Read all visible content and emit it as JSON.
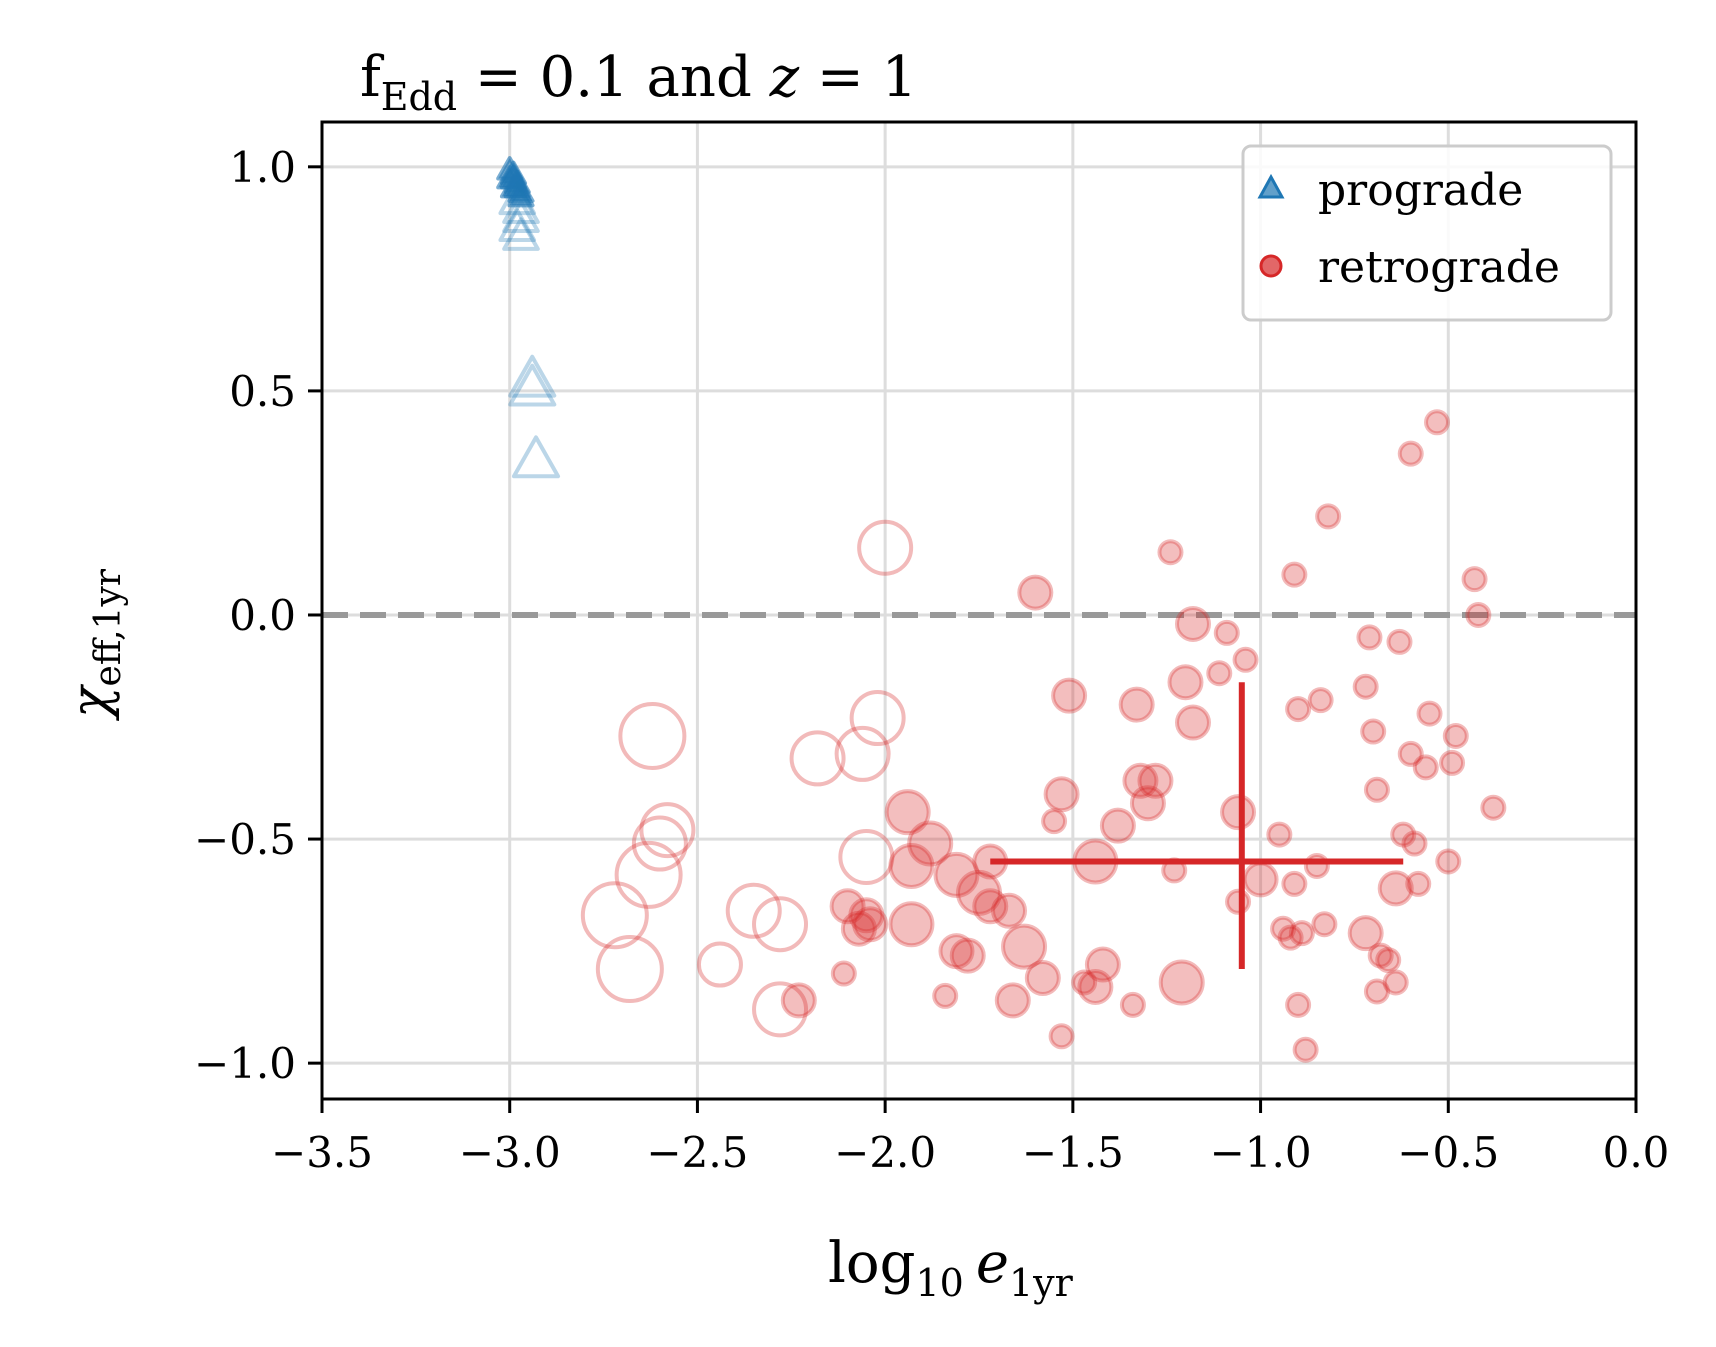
{
  "chart_data": {
    "type": "scatter",
    "title": {
      "prefix": "f",
      "sub": "Edd",
      "suffix": " = 0.1 and ",
      "var": "z",
      "tail": " = 1"
    },
    "xlabel": {
      "main": "log",
      "sub": "10",
      "var": "e",
      "var_sub": "1yr"
    },
    "ylabel": {
      "main": "χ",
      "sub": "eff,1yr"
    },
    "xlim": [
      -3.5,
      0.0
    ],
    "ylim": [
      -1.08,
      1.1
    ],
    "xticks": [
      -3.5,
      -3.0,
      -2.5,
      -2.0,
      -1.5,
      -1.0,
      -0.5,
      0.0
    ],
    "xtick_labels": [
      "−3.5",
      "−3.0",
      "−2.5",
      "−2.0",
      "−1.5",
      "−1.0",
      "−0.5",
      "0.0"
    ],
    "yticks": [
      1.0,
      0.5,
      0.0,
      -0.5,
      -1.0
    ],
    "ytick_labels": [
      "1.0",
      "0.5",
      "0.0",
      "−0.5",
      "−1.0"
    ],
    "grid": true,
    "legend_position": "top-right",
    "reference_line": {
      "y": 0.0,
      "style": "dashed",
      "color": "#999999"
    },
    "colors": {
      "prograde": "#1f77b4",
      "retrograde": "#d62728"
    },
    "series": [
      {
        "name": "prograde",
        "marker": "triangle",
        "points": [
          {
            "x": -3.0,
            "y": 0.99,
            "s": "small",
            "filled": true
          },
          {
            "x": -2.99,
            "y": 0.98,
            "s": "small",
            "filled": true
          },
          {
            "x": -2.99,
            "y": 0.97,
            "s": "small",
            "filled": true
          },
          {
            "x": -2.98,
            "y": 0.96,
            "s": "small",
            "filled": true
          },
          {
            "x": -2.98,
            "y": 0.95,
            "s": "small",
            "filled": true
          },
          {
            "x": -2.97,
            "y": 0.94,
            "s": "small",
            "filled": true
          },
          {
            "x": -2.97,
            "y": 0.93,
            "s": "small",
            "filled": true
          },
          {
            "x": -3.0,
            "y": 0.97,
            "s": "small",
            "filled": true
          },
          {
            "x": -2.99,
            "y": 0.95,
            "s": "small",
            "filled": true
          },
          {
            "x": -2.98,
            "y": 0.92,
            "s": "medium",
            "filled": false
          },
          {
            "x": -2.97,
            "y": 0.9,
            "s": "medium",
            "filled": false
          },
          {
            "x": -2.97,
            "y": 0.88,
            "s": "medium",
            "filled": false
          },
          {
            "x": -2.98,
            "y": 0.86,
            "s": "medium",
            "filled": false
          },
          {
            "x": -2.97,
            "y": 0.84,
            "s": "medium",
            "filled": false
          },
          {
            "x": -2.94,
            "y": 0.52,
            "s": "large",
            "filled": false
          },
          {
            "x": -2.94,
            "y": 0.5,
            "s": "large",
            "filled": false
          },
          {
            "x": -2.93,
            "y": 0.34,
            "s": "large",
            "filled": false
          }
        ]
      },
      {
        "name": "retrograde",
        "marker": "circle",
        "points": [
          {
            "x": -0.53,
            "y": 0.43,
            "s": "small",
            "filled": true
          },
          {
            "x": -0.6,
            "y": 0.36,
            "s": "small",
            "filled": true
          },
          {
            "x": -0.82,
            "y": 0.22,
            "s": "small",
            "filled": true
          },
          {
            "x": -1.24,
            "y": 0.14,
            "s": "small",
            "filled": true
          },
          {
            "x": -0.91,
            "y": 0.09,
            "s": "small",
            "filled": true
          },
          {
            "x": -0.43,
            "y": 0.08,
            "s": "small",
            "filled": true
          },
          {
            "x": -1.6,
            "y": 0.05,
            "s": "medium",
            "filled": true
          },
          {
            "x": -0.42,
            "y": 0.0,
            "s": "small",
            "filled": true
          },
          {
            "x": -1.18,
            "y": -0.02,
            "s": "medium",
            "filled": true
          },
          {
            "x": -1.09,
            "y": -0.04,
            "s": "small",
            "filled": true
          },
          {
            "x": -0.63,
            "y": -0.06,
            "s": "small",
            "filled": true
          },
          {
            "x": -0.71,
            "y": -0.05,
            "s": "small",
            "filled": true
          },
          {
            "x": -1.04,
            "y": -0.1,
            "s": "small",
            "filled": true
          },
          {
            "x": -1.11,
            "y": -0.13,
            "s": "small",
            "filled": true
          },
          {
            "x": -1.2,
            "y": -0.15,
            "s": "medium",
            "filled": true
          },
          {
            "x": -0.72,
            "y": -0.16,
            "s": "small",
            "filled": true
          },
          {
            "x": -1.51,
            "y": -0.18,
            "s": "medium",
            "filled": true
          },
          {
            "x": -0.84,
            "y": -0.19,
            "s": "small",
            "filled": true
          },
          {
            "x": -1.33,
            "y": -0.2,
            "s": "medium",
            "filled": true
          },
          {
            "x": -0.9,
            "y": -0.21,
            "s": "small",
            "filled": true
          },
          {
            "x": -0.55,
            "y": -0.22,
            "s": "small",
            "filled": true
          },
          {
            "x": -1.18,
            "y": -0.24,
            "s": "medium",
            "filled": true
          },
          {
            "x": -0.7,
            "y": -0.26,
            "s": "small",
            "filled": true
          },
          {
            "x": -0.48,
            "y": -0.27,
            "s": "small",
            "filled": true
          },
          {
            "x": -0.6,
            "y": -0.31,
            "s": "small",
            "filled": true
          },
          {
            "x": -0.56,
            "y": -0.34,
            "s": "small",
            "filled": true
          },
          {
            "x": -0.49,
            "y": -0.33,
            "s": "small",
            "filled": true
          },
          {
            "x": -1.32,
            "y": -0.37,
            "s": "medium",
            "filled": true
          },
          {
            "x": -1.28,
            "y": -0.37,
            "s": "medium",
            "filled": true
          },
          {
            "x": -1.53,
            "y": -0.4,
            "s": "medium",
            "filled": true
          },
          {
            "x": -0.69,
            "y": -0.39,
            "s": "small",
            "filled": true
          },
          {
            "x": -1.3,
            "y": -0.42,
            "s": "medium",
            "filled": true
          },
          {
            "x": -0.38,
            "y": -0.43,
            "s": "small",
            "filled": true
          },
          {
            "x": -1.06,
            "y": -0.44,
            "s": "medium",
            "filled": true
          },
          {
            "x": -1.94,
            "y": -0.44,
            "s": "large",
            "filled": true
          },
          {
            "x": -1.55,
            "y": -0.46,
            "s": "small",
            "filled": true
          },
          {
            "x": -1.38,
            "y": -0.47,
            "s": "medium",
            "filled": true
          },
          {
            "x": -0.95,
            "y": -0.49,
            "s": "small",
            "filled": true
          },
          {
            "x": -0.62,
            "y": -0.49,
            "s": "small",
            "filled": true
          },
          {
            "x": -0.59,
            "y": -0.51,
            "s": "small",
            "filled": true
          },
          {
            "x": -1.88,
            "y": -0.51,
            "s": "large",
            "filled": true
          },
          {
            "x": -1.72,
            "y": -0.55,
            "s": "medium",
            "filled": true
          },
          {
            "x": -1.44,
            "y": -0.55,
            "s": "large",
            "filled": true
          },
          {
            "x": -0.5,
            "y": -0.55,
            "s": "small",
            "filled": true
          },
          {
            "x": -1.93,
            "y": -0.56,
            "s": "large",
            "filled": true
          },
          {
            "x": -0.85,
            "y": -0.56,
            "s": "small",
            "filled": true
          },
          {
            "x": -1.23,
            "y": -0.57,
            "s": "small",
            "filled": true
          },
          {
            "x": -1.81,
            "y": -0.58,
            "s": "large",
            "filled": true
          },
          {
            "x": -1.0,
            "y": -0.59,
            "s": "medium",
            "filled": true
          },
          {
            "x": -0.91,
            "y": -0.6,
            "s": "small",
            "filled": true
          },
          {
            "x": -0.58,
            "y": -0.6,
            "s": "small",
            "filled": true
          },
          {
            "x": -0.64,
            "y": -0.61,
            "s": "medium",
            "filled": true
          },
          {
            "x": -1.75,
            "y": -0.62,
            "s": "large",
            "filled": true
          },
          {
            "x": -1.72,
            "y": -0.65,
            "s": "medium",
            "filled": true
          },
          {
            "x": -2.1,
            "y": -0.65,
            "s": "medium",
            "filled": true
          },
          {
            "x": -1.06,
            "y": -0.64,
            "s": "small",
            "filled": true
          },
          {
            "x": -1.67,
            "y": -0.66,
            "s": "medium",
            "filled": true
          },
          {
            "x": -2.05,
            "y": -0.67,
            "s": "medium",
            "filled": true
          },
          {
            "x": -2.04,
            "y": -0.69,
            "s": "medium",
            "filled": true
          },
          {
            "x": -1.93,
            "y": -0.69,
            "s": "large",
            "filled": true
          },
          {
            "x": -2.07,
            "y": -0.7,
            "s": "medium",
            "filled": true
          },
          {
            "x": -0.83,
            "y": -0.69,
            "s": "small",
            "filled": true
          },
          {
            "x": -0.94,
            "y": -0.7,
            "s": "small",
            "filled": true
          },
          {
            "x": -0.92,
            "y": -0.72,
            "s": "small",
            "filled": true
          },
          {
            "x": -0.89,
            "y": -0.71,
            "s": "small",
            "filled": true
          },
          {
            "x": -0.72,
            "y": -0.71,
            "s": "medium",
            "filled": true
          },
          {
            "x": -1.63,
            "y": -0.74,
            "s": "large",
            "filled": true
          },
          {
            "x": -1.81,
            "y": -0.75,
            "s": "medium",
            "filled": true
          },
          {
            "x": -1.78,
            "y": -0.76,
            "s": "medium",
            "filled": true
          },
          {
            "x": -0.68,
            "y": -0.76,
            "s": "small",
            "filled": true
          },
          {
            "x": -0.66,
            "y": -0.77,
            "s": "small",
            "filled": true
          },
          {
            "x": -1.42,
            "y": -0.78,
            "s": "medium",
            "filled": true
          },
          {
            "x": -2.11,
            "y": -0.8,
            "s": "small",
            "filled": true
          },
          {
            "x": -1.58,
            "y": -0.81,
            "s": "medium",
            "filled": true
          },
          {
            "x": -1.47,
            "y": -0.82,
            "s": "small",
            "filled": true
          },
          {
            "x": -1.44,
            "y": -0.83,
            "s": "medium",
            "filled": true
          },
          {
            "x": -1.21,
            "y": -0.82,
            "s": "large",
            "filled": true
          },
          {
            "x": -0.64,
            "y": -0.82,
            "s": "small",
            "filled": true
          },
          {
            "x": -0.69,
            "y": -0.84,
            "s": "small",
            "filled": true
          },
          {
            "x": -1.84,
            "y": -0.85,
            "s": "small",
            "filled": true
          },
          {
            "x": -1.66,
            "y": -0.86,
            "s": "medium",
            "filled": true
          },
          {
            "x": -2.23,
            "y": -0.86,
            "s": "medium",
            "filled": true
          },
          {
            "x": -1.34,
            "y": -0.87,
            "s": "small",
            "filled": true
          },
          {
            "x": -0.9,
            "y": -0.87,
            "s": "small",
            "filled": true
          },
          {
            "x": -1.53,
            "y": -0.94,
            "s": "small",
            "filled": true
          },
          {
            "x": -0.88,
            "y": -0.97,
            "s": "small",
            "filled": true
          },
          {
            "x": -2.0,
            "y": 0.15,
            "s": "xlarge",
            "filled": false
          },
          {
            "x": -2.02,
            "y": -0.23,
            "s": "xlarge",
            "filled": false
          },
          {
            "x": -2.62,
            "y": -0.27,
            "s": "xxlarge",
            "filled": false
          },
          {
            "x": -2.18,
            "y": -0.32,
            "s": "xlarge",
            "filled": false
          },
          {
            "x": -2.06,
            "y": -0.31,
            "s": "xlarge",
            "filled": false
          },
          {
            "x": -2.58,
            "y": -0.48,
            "s": "xlarge",
            "filled": false
          },
          {
            "x": -2.6,
            "y": -0.51,
            "s": "xlarge",
            "filled": false
          },
          {
            "x": -2.05,
            "y": -0.54,
            "s": "xlarge",
            "filled": false
          },
          {
            "x": -2.63,
            "y": -0.58,
            "s": "xxlarge",
            "filled": false
          },
          {
            "x": -2.35,
            "y": -0.66,
            "s": "xlarge",
            "filled": false
          },
          {
            "x": -2.72,
            "y": -0.67,
            "s": "xxlarge",
            "filled": false
          },
          {
            "x": -2.28,
            "y": -0.69,
            "s": "xlarge",
            "filled": false
          },
          {
            "x": -2.44,
            "y": -0.78,
            "s": "large",
            "filled": false
          },
          {
            "x": -2.68,
            "y": -0.79,
            "s": "xxlarge",
            "filled": false
          },
          {
            "x": -2.28,
            "y": -0.88,
            "s": "xlarge",
            "filled": false
          }
        ]
      }
    ],
    "crosshair": {
      "center": {
        "x": -1.05,
        "y": -0.55
      },
      "x_range": [
        -1.72,
        -0.62
      ],
      "y_range": [
        -0.79,
        -0.15
      ],
      "color": "#d62728"
    }
  }
}
